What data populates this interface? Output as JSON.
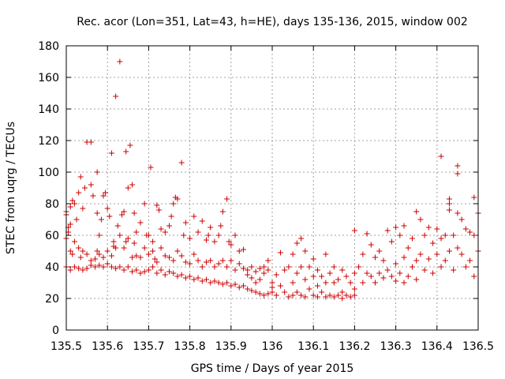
{
  "chart_data": {
    "type": "scatter",
    "title": "Rec. acor (Lon=351, Lat=43, h=HE), days 135-136, 2015, window 002",
    "xlabel": "GPS time / Days of year 2015",
    "ylabel": "STEC from uqrg / TECUs",
    "xlim": [
      135.5,
      136.5
    ],
    "ylim": [
      0,
      180
    ],
    "xticks": [
      "135.5",
      "135.6",
      "135.7",
      "135.8",
      "135.9",
      "136",
      "136.1",
      "136.2",
      "136.3",
      "136.4",
      "136.5"
    ],
    "yticks": [
      "0",
      "20",
      "40",
      "60",
      "80",
      "100",
      "120",
      "140",
      "160",
      "180"
    ],
    "grid": true,
    "marker": "plus",
    "color": "#cc0000",
    "points": [
      [
        135.5,
        75
      ],
      [
        135.5,
        73
      ],
      [
        135.505,
        65
      ],
      [
        135.505,
        62
      ],
      [
        135.51,
        67
      ],
      [
        135.51,
        78
      ],
      [
        135.515,
        82
      ],
      [
        135.52,
        80
      ],
      [
        135.525,
        70
      ],
      [
        135.53,
        87
      ],
      [
        135.535,
        97
      ],
      [
        135.54,
        77
      ],
      [
        135.545,
        90
      ],
      [
        135.55,
        119
      ],
      [
        135.56,
        119
      ],
      [
        135.56,
        92
      ],
      [
        135.565,
        85
      ],
      [
        135.575,
        100
      ],
      [
        135.575,
        74
      ],
      [
        135.58,
        60
      ],
      [
        135.585,
        70
      ],
      [
        135.59,
        85
      ],
      [
        135.595,
        87
      ],
      [
        135.6,
        77
      ],
      [
        135.605,
        72
      ],
      [
        135.61,
        112
      ],
      [
        135.615,
        56
      ],
      [
        135.62,
        148
      ],
      [
        135.625,
        66
      ],
      [
        135.63,
        170
      ],
      [
        135.635,
        73
      ],
      [
        135.64,
        75
      ],
      [
        135.645,
        113
      ],
      [
        135.65,
        90
      ],
      [
        135.655,
        117
      ],
      [
        135.66,
        92
      ],
      [
        135.665,
        74
      ],
      [
        135.67,
        62
      ],
      [
        135.68,
        68
      ],
      [
        135.69,
        80
      ],
      [
        135.695,
        60
      ],
      [
        135.7,
        60
      ],
      [
        135.705,
        103
      ],
      [
        135.71,
        56
      ],
      [
        135.72,
        79
      ],
      [
        135.725,
        76
      ],
      [
        135.73,
        64
      ],
      [
        135.74,
        62
      ],
      [
        135.75,
        66
      ],
      [
        135.755,
        72
      ],
      [
        135.76,
        80
      ],
      [
        135.765,
        84
      ],
      [
        135.77,
        83
      ],
      [
        135.78,
        106
      ],
      [
        135.785,
        60
      ],
      [
        135.79,
        68
      ],
      [
        135.8,
        58
      ],
      [
        135.81,
        72
      ],
      [
        135.82,
        62
      ],
      [
        135.83,
        69
      ],
      [
        135.84,
        57
      ],
      [
        135.845,
        60
      ],
      [
        135.85,
        65
      ],
      [
        135.86,
        56
      ],
      [
        135.87,
        60
      ],
      [
        135.875,
        66
      ],
      [
        135.88,
        75
      ],
      [
        135.89,
        83
      ],
      [
        135.895,
        56
      ],
      [
        135.9,
        54
      ],
      [
        135.91,
        60
      ],
      [
        135.92,
        50
      ],
      [
        135.93,
        51
      ],
      [
        135.5,
        58
      ],
      [
        135.51,
        50
      ],
      [
        135.515,
        48
      ],
      [
        135.52,
        56
      ],
      [
        135.53,
        52
      ],
      [
        135.535,
        46
      ],
      [
        135.54,
        50
      ],
      [
        135.55,
        48
      ],
      [
        135.56,
        44
      ],
      [
        135.57,
        45
      ],
      [
        135.575,
        50
      ],
      [
        135.58,
        48
      ],
      [
        135.59,
        46
      ],
      [
        135.6,
        50
      ],
      [
        135.61,
        47
      ],
      [
        135.615,
        53
      ],
      [
        135.62,
        52
      ],
      [
        135.63,
        60
      ],
      [
        135.64,
        52
      ],
      [
        135.645,
        56
      ],
      [
        135.65,
        58
      ],
      [
        135.66,
        46
      ],
      [
        135.665,
        55
      ],
      [
        135.67,
        47
      ],
      [
        135.68,
        46
      ],
      [
        135.69,
        52
      ],
      [
        135.7,
        48
      ],
      [
        135.71,
        50
      ],
      [
        135.715,
        45
      ],
      [
        135.72,
        43
      ],
      [
        135.73,
        52
      ],
      [
        135.74,
        47
      ],
      [
        135.75,
        46
      ],
      [
        135.76,
        44
      ],
      [
        135.77,
        50
      ],
      [
        135.78,
        47
      ],
      [
        135.79,
        43
      ],
      [
        135.8,
        42
      ],
      [
        135.81,
        48
      ],
      [
        135.82,
        44
      ],
      [
        135.83,
        40
      ],
      [
        135.84,
        43
      ],
      [
        135.85,
        44
      ],
      [
        135.86,
        40
      ],
      [
        135.87,
        42
      ],
      [
        135.88,
        44
      ],
      [
        135.89,
        40
      ],
      [
        135.9,
        44
      ],
      [
        135.91,
        38
      ],
      [
        135.92,
        42
      ],
      [
        135.93,
        39
      ],
      [
        135.94,
        38
      ],
      [
        135.95,
        40
      ],
      [
        135.96,
        37
      ],
      [
        135.97,
        39
      ],
      [
        135.98,
        36
      ],
      [
        135.99,
        38
      ],
      [
        135.5,
        40
      ],
      [
        135.51,
        38
      ],
      [
        135.52,
        40
      ],
      [
        135.53,
        39
      ],
      [
        135.54,
        38
      ],
      [
        135.55,
        39
      ],
      [
        135.56,
        41
      ],
      [
        135.57,
        40
      ],
      [
        135.58,
        41
      ],
      [
        135.59,
        40
      ],
      [
        135.6,
        42
      ],
      [
        135.61,
        40
      ],
      [
        135.62,
        39
      ],
      [
        135.63,
        40
      ],
      [
        135.64,
        38
      ],
      [
        135.65,
        40
      ],
      [
        135.66,
        37
      ],
      [
        135.67,
        38
      ],
      [
        135.68,
        36
      ],
      [
        135.69,
        37
      ],
      [
        135.7,
        38
      ],
      [
        135.71,
        40
      ],
      [
        135.72,
        36
      ],
      [
        135.73,
        38
      ],
      [
        135.74,
        35
      ],
      [
        135.75,
        37
      ],
      [
        135.76,
        36
      ],
      [
        135.77,
        34
      ],
      [
        135.78,
        35
      ],
      [
        135.79,
        33
      ],
      [
        135.8,
        34
      ],
      [
        135.81,
        32
      ],
      [
        135.82,
        33
      ],
      [
        135.83,
        31
      ],
      [
        135.84,
        32
      ],
      [
        135.85,
        30
      ],
      [
        135.86,
        31
      ],
      [
        135.87,
        30
      ],
      [
        135.88,
        29
      ],
      [
        135.89,
        30
      ],
      [
        135.9,
        28
      ],
      [
        135.91,
        29
      ],
      [
        135.92,
        27
      ],
      [
        135.93,
        28
      ],
      [
        135.94,
        26
      ],
      [
        135.95,
        25
      ],
      [
        135.96,
        24
      ],
      [
        135.97,
        23
      ],
      [
        135.98,
        22
      ],
      [
        135.99,
        23
      ],
      [
        135.94,
        35
      ],
      [
        135.95,
        33
      ],
      [
        135.96,
        30
      ],
      [
        135.97,
        32
      ],
      [
        135.98,
        40
      ],
      [
        135.99,
        44
      ],
      [
        136.0,
        30
      ],
      [
        136.0,
        27
      ],
      [
        136.0,
        24
      ],
      [
        136.01,
        35
      ],
      [
        136.01,
        22
      ],
      [
        136.02,
        49
      ],
      [
        136.02,
        28
      ],
      [
        136.03,
        38
      ],
      [
        136.03,
        24
      ],
      [
        136.04,
        40
      ],
      [
        136.04,
        21
      ],
      [
        136.05,
        48
      ],
      [
        136.05,
        30
      ],
      [
        136.05,
        22
      ],
      [
        136.06,
        55
      ],
      [
        136.06,
        36
      ],
      [
        136.06,
        24
      ],
      [
        136.07,
        58
      ],
      [
        136.07,
        40
      ],
      [
        136.07,
        22
      ],
      [
        136.08,
        50
      ],
      [
        136.08,
        32
      ],
      [
        136.08,
        21
      ],
      [
        136.09,
        40
      ],
      [
        136.09,
        26
      ],
      [
        136.1,
        45
      ],
      [
        136.1,
        34
      ],
      [
        136.1,
        22
      ],
      [
        136.11,
        38
      ],
      [
        136.11,
        28
      ],
      [
        136.11,
        21
      ],
      [
        136.12,
        34
      ],
      [
        136.12,
        24
      ],
      [
        136.13,
        48
      ],
      [
        136.13,
        30
      ],
      [
        136.13,
        21
      ],
      [
        136.14,
        36
      ],
      [
        136.14,
        22
      ],
      [
        136.15,
        40
      ],
      [
        136.15,
        30
      ],
      [
        136.15,
        21
      ],
      [
        136.16,
        32
      ],
      [
        136.16,
        22
      ],
      [
        136.17,
        38
      ],
      [
        136.17,
        24
      ],
      [
        136.17,
        20
      ],
      [
        136.18,
        34
      ],
      [
        136.18,
        22
      ],
      [
        136.19,
        30
      ],
      [
        136.19,
        21
      ],
      [
        136.2,
        36
      ],
      [
        136.2,
        26
      ],
      [
        136.2,
        22
      ],
      [
        136.2,
        63
      ],
      [
        136.21,
        40
      ],
      [
        136.22,
        48
      ],
      [
        136.22,
        30
      ],
      [
        136.23,
        61
      ],
      [
        136.23,
        36
      ],
      [
        136.24,
        54
      ],
      [
        136.24,
        34
      ],
      [
        136.25,
        46
      ],
      [
        136.25,
        30
      ],
      [
        136.26,
        50
      ],
      [
        136.26,
        36
      ],
      [
        136.27,
        44
      ],
      [
        136.27,
        33
      ],
      [
        136.28,
        63
      ],
      [
        136.28,
        38
      ],
      [
        136.29,
        56
      ],
      [
        136.29,
        34
      ],
      [
        136.3,
        65
      ],
      [
        136.3,
        42
      ],
      [
        136.3,
        31
      ],
      [
        136.31,
        60
      ],
      [
        136.31,
        36
      ],
      [
        136.32,
        66
      ],
      [
        136.32,
        46
      ],
      [
        136.32,
        30
      ],
      [
        136.33,
        52
      ],
      [
        136.33,
        34
      ],
      [
        136.34,
        58
      ],
      [
        136.34,
        40
      ],
      [
        136.35,
        75
      ],
      [
        136.35,
        44
      ],
      [
        136.35,
        32
      ],
      [
        136.36,
        70
      ],
      [
        136.36,
        48
      ],
      [
        136.37,
        60
      ],
      [
        136.37,
        38
      ],
      [
        136.38,
        65
      ],
      [
        136.38,
        45
      ],
      [
        136.39,
        55
      ],
      [
        136.39,
        36
      ],
      [
        136.4,
        64
      ],
      [
        136.4,
        48
      ],
      [
        136.41,
        110
      ],
      [
        136.41,
        58
      ],
      [
        136.41,
        40
      ],
      [
        136.42,
        60
      ],
      [
        136.42,
        44
      ],
      [
        136.43,
        83
      ],
      [
        136.43,
        80
      ],
      [
        136.43,
        76
      ],
      [
        136.43,
        50
      ],
      [
        136.44,
        60
      ],
      [
        136.44,
        38
      ],
      [
        136.45,
        104
      ],
      [
        136.45,
        99
      ],
      [
        136.45,
        74
      ],
      [
        136.45,
        52
      ],
      [
        136.46,
        70
      ],
      [
        136.46,
        48
      ],
      [
        136.47,
        64
      ],
      [
        136.47,
        40
      ],
      [
        136.48,
        62
      ],
      [
        136.48,
        44
      ],
      [
        136.49,
        84
      ],
      [
        136.49,
        60
      ],
      [
        136.49,
        34
      ],
      [
        136.5,
        74
      ],
      [
        136.5,
        50
      ]
    ]
  }
}
